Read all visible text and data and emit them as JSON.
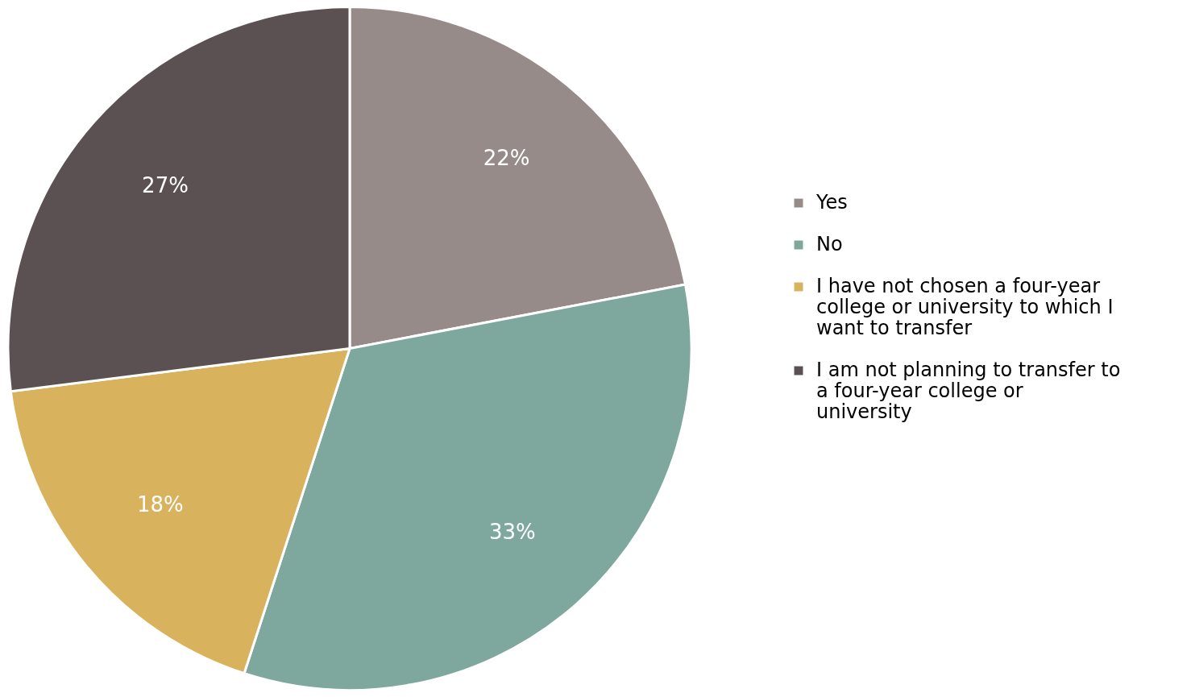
{
  "chart_data": {
    "type": "pie",
    "categories": [
      "Yes",
      "No",
      "I have not chosen a four-year college or university to which I want to transfer",
      "I am not planning to transfer to a four-year college or university"
    ],
    "values": [
      22,
      33,
      18,
      27
    ],
    "colors": [
      "#968b89",
      "#7ea89d",
      "#d8b25c",
      "#5c5152"
    ],
    "value_labels": [
      "22%",
      "33%",
      "18%",
      "27%"
    ],
    "legend": "right"
  }
}
